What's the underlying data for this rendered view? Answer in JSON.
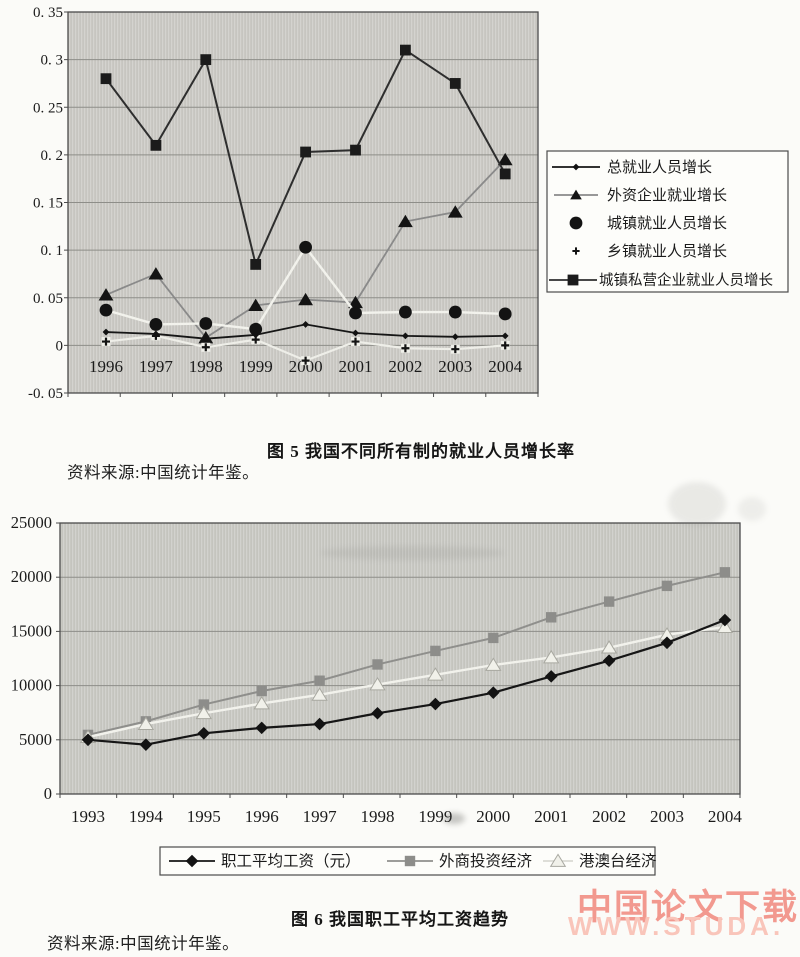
{
  "page": {
    "figure5_caption": "图 5  我国不同所有制的就业人员增长率",
    "figure5_source": "资料来源:中国统计年鉴。",
    "figure6_caption": "图 6  我国职工平均工资趋势",
    "figure6_source": "资料来源:中国统计年鉴。",
    "watermark_line1": "中国论文下载",
    "watermark_line2": "WWW.STUDA.",
    "watermark_color1": "#f2998f",
    "watermark_color2": "#f9c5ba"
  },
  "chart_data": [
    {
      "id": "figure5",
      "type": "line",
      "title": "我国不同所有制的就业人员增长率",
      "caption": "图 5  我国不同所有制的就业人员增长率",
      "categories": [
        "1996",
        "1997",
        "1998",
        "1999",
        "2000",
        "2001",
        "2002",
        "2003",
        "2004"
      ],
      "y_ticks": [
        "0. 35",
        "0. 3",
        "0. 25",
        "0. 2",
        "0. 15",
        "0. 1",
        "0. 05",
        "0",
        "-0. 05"
      ],
      "ylim": [
        -0.05,
        0.35
      ],
      "grid": true,
      "legend_position": "right",
      "plot_bg": "#cac9c4",
      "series": [
        {
          "name": "总就业人员增长",
          "marker": "dot-diamond",
          "line_color": "#161616",
          "line_width": 1.8,
          "values": [
            0.014,
            0.012,
            0.007,
            0.011,
            0.022,
            0.013,
            0.01,
            0.009,
            0.01
          ]
        },
        {
          "name": "外资企业就业增长",
          "marker": "triangle",
          "line_color": "#8a8a8a",
          "line_width": 1.8,
          "values": [
            0.053,
            0.075,
            0.008,
            0.042,
            0.048,
            0.045,
            0.13,
            0.14,
            0.195
          ]
        },
        {
          "name": "城镇就业人员增长",
          "marker": "circle",
          "line_color": "#f2f2ec",
          "line_width": 2.4,
          "values": [
            0.037,
            0.022,
            0.023,
            0.017,
            0.103,
            0.034,
            0.035,
            0.035,
            0.033
          ]
        },
        {
          "name": "乡镇就业人员增长",
          "marker": "plus",
          "line_color": "#eeeee8",
          "line_width": 2.2,
          "values": [
            0.004,
            0.01,
            -0.002,
            0.006,
            -0.016,
            0.004,
            -0.003,
            -0.004,
            0.0
          ]
        },
        {
          "name": "城镇私营企业就业人员增长",
          "marker": "square",
          "line_color": "#2e2e2e",
          "line_width": 2.0,
          "values": [
            0.28,
            0.21,
            0.3,
            0.085,
            0.203,
            0.205,
            0.31,
            0.275,
            0.18
          ]
        }
      ]
    },
    {
      "id": "figure6",
      "type": "line",
      "title": "我国职工平均工资趋势",
      "caption": "图 6  我国职工平均工资趋势",
      "categories": [
        "1993",
        "1994",
        "1995",
        "1996",
        "1997",
        "1998",
        "1999",
        "2000",
        "2001",
        "2002",
        "2003",
        "2004"
      ],
      "y_ticks": [
        "25000",
        "20000",
        "15000",
        "10000",
        "5000",
        "0"
      ],
      "ylim": [
        0,
        25000
      ],
      "grid": true,
      "legend_position": "bottom",
      "plot_bg": "#c8c8c3",
      "series": [
        {
          "name": "职工平均工资（元）",
          "marker": "diamond",
          "line_color": "#161616",
          "line_width": 2.2,
          "values": [
            5000,
            4550,
            5600,
            6100,
            6450,
            7450,
            8300,
            9350,
            10850,
            12300,
            13950,
            16050
          ]
        },
        {
          "name": "外商投资经济",
          "marker": "square-gray",
          "line_color": "#8f8f8c",
          "line_width": 2.0,
          "values": [
            5450,
            6700,
            8250,
            9500,
            10450,
            11950,
            13200,
            14400,
            16300,
            17750,
            19200,
            20450
          ]
        },
        {
          "name": "港澳台经济",
          "marker": "triangle-light",
          "line_color": "#f2f2ec",
          "line_width": 2.4,
          "values": [
            5250,
            6450,
            7450,
            8350,
            9150,
            10100,
            11000,
            11900,
            12600,
            13500,
            14700,
            15400
          ]
        }
      ]
    }
  ]
}
